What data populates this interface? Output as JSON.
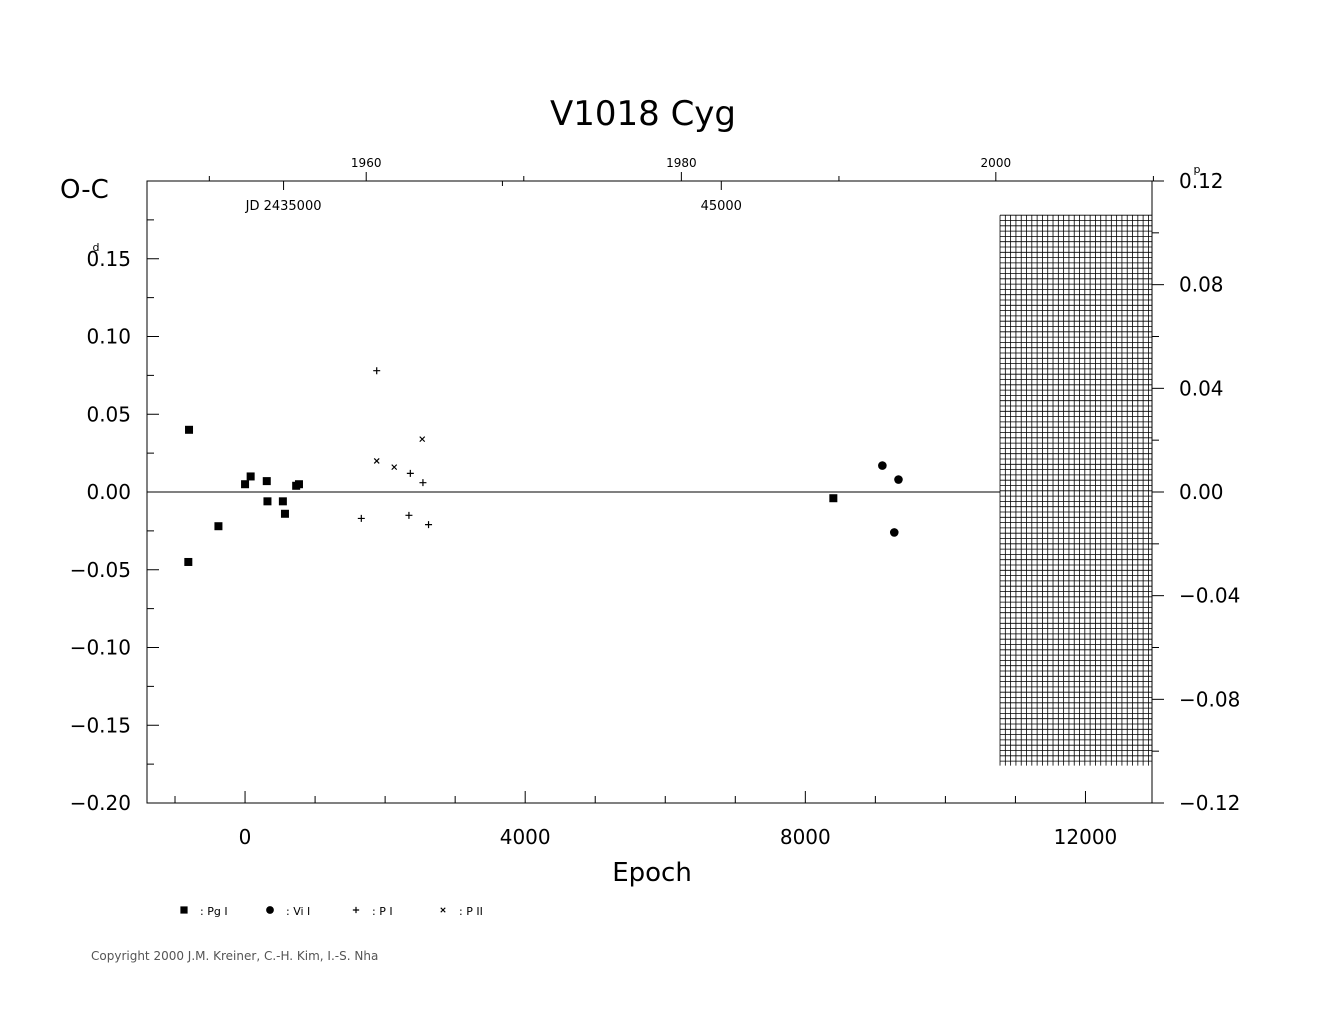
{
  "chart_data": {
    "type": "scatter",
    "title": "V1018  Cyg",
    "xlabel": "Epoch",
    "ylabel": "O-C",
    "ylabel_unit": "d",
    "y2_unit": "p",
    "xlim": [
      -1400,
      12950
    ],
    "ylim": [
      -0.2,
      0.2
    ],
    "y2lim": [
      -0.12,
      0.12
    ],
    "x_ticks": [
      {
        "value": 0,
        "label": "0"
      },
      {
        "value": 4000,
        "label": "4000"
      },
      {
        "value": 8000,
        "label": "8000"
      },
      {
        "value": 12000,
        "label": "12000"
      }
    ],
    "x_minor_step": 1000,
    "y_ticks": [
      {
        "value": 0.15,
        "label": "0.15",
        "unit_marker": true
      },
      {
        "value": 0.1,
        "label": "0.10"
      },
      {
        "value": 0.05,
        "label": "0.05"
      },
      {
        "value": 0.0,
        "label": "0.00"
      },
      {
        "value": -0.05,
        "label": "−0.05"
      },
      {
        "value": -0.1,
        "label": "−0.10"
      },
      {
        "value": -0.15,
        "label": "−0.15"
      },
      {
        "value": -0.2,
        "label": "−0.20"
      }
    ],
    "y_minor_step": 0.025,
    "y2_ticks": [
      {
        "value": 0.12,
        "label": "0.12",
        "unit_marker": true
      },
      {
        "value": 0.08,
        "label": "0.08"
      },
      {
        "value": 0.04,
        "label": "0.04"
      },
      {
        "value": 0.0,
        "label": "0.00"
      },
      {
        "value": -0.04,
        "label": "−0.04"
      },
      {
        "value": -0.08,
        "label": "−0.08"
      },
      {
        "value": -0.12,
        "label": "−0.12"
      }
    ],
    "y2_minor_step": 0.02,
    "top_year_ticks": [
      {
        "year": 1960,
        "epoch": 1730,
        "label": "1960"
      },
      {
        "year": 1980,
        "epoch": 6230,
        "label": "1980"
      },
      {
        "year": 2000,
        "epoch": 10720,
        "label": "2000"
      }
    ],
    "top_year_minor_epochs": [
      -510,
      3980,
      8480,
      12970
    ],
    "jd_ticks": [
      {
        "epoch": 550,
        "label": "JD  2435000"
      },
      {
        "epoch": 6800,
        "label": "45000"
      }
    ],
    "jd_minor_epochs": [
      3675
    ],
    "grid_region": {
      "x": [
        10780,
        12950
      ],
      "y": [
        0.178,
        -0.176
      ]
    },
    "series": [
      {
        "name": "Pg I",
        "marker": "square",
        "points": [
          {
            "x": -800,
            "y": 0.04
          },
          {
            "x": -810,
            "y": -0.045
          },
          {
            "x": -380,
            "y": -0.022
          },
          {
            "x": 0,
            "y": 0.005
          },
          {
            "x": 80,
            "y": 0.01
          },
          {
            "x": 310,
            "y": 0.007
          },
          {
            "x": 320,
            "y": -0.006
          },
          {
            "x": 540,
            "y": -0.006
          },
          {
            "x": 570,
            "y": -0.014
          },
          {
            "x": 730,
            "y": 0.004
          },
          {
            "x": 770,
            "y": 0.005
          },
          {
            "x": 8400,
            "y": -0.004
          }
        ]
      },
      {
        "name": "Vi I",
        "marker": "circle",
        "points": [
          {
            "x": 9100,
            "y": 0.017
          },
          {
            "x": 9330,
            "y": 0.008
          },
          {
            "x": 9270,
            "y": -0.026
          }
        ]
      },
      {
        "name": "P I",
        "marker": "plus",
        "points": [
          {
            "x": 1880,
            "y": 0.078
          },
          {
            "x": 1660,
            "y": -0.017
          },
          {
            "x": 2340,
            "y": -0.015
          },
          {
            "x": 2360,
            "y": 0.012
          },
          {
            "x": 2540,
            "y": 0.006
          },
          {
            "x": 2620,
            "y": -0.021
          }
        ]
      },
      {
        "name": "P II",
        "marker": "cross",
        "points": [
          {
            "x": 1880,
            "y": 0.02
          },
          {
            "x": 2130,
            "y": 0.016
          },
          {
            "x": 2530,
            "y": 0.034
          }
        ]
      }
    ],
    "legend": [
      {
        "marker": "square",
        "label": ": Pg I"
      },
      {
        "marker": "circle",
        "label": ": Vi I"
      },
      {
        "marker": "plus",
        "label": ": P I"
      },
      {
        "marker": "cross",
        "label": ": P II"
      }
    ],
    "legend_position": "bottom-left",
    "zero_line": true
  },
  "copyright": "Copyright 2000 J.M. Kreiner, C.-H. Kim, I.-S. Nha"
}
